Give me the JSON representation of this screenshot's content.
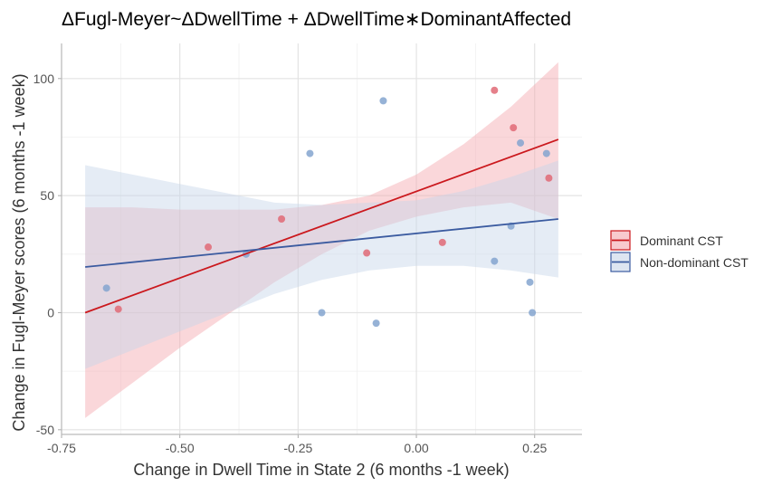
{
  "chart_data": {
    "type": "scatter",
    "title": "ΔFugl-Meyer~ΔDwellTime + ΔDwellTime∗DominantAffected",
    "xlabel": "Change in Dwell Time in State 2 (6 months -1 week)",
    "ylabel": "Change in Fugl-Meyer scores (6 months -1 week)",
    "xlim": [
      -0.75,
      0.35
    ],
    "ylim": [
      -52,
      115
    ],
    "x_ticks": [
      -0.75,
      -0.5,
      -0.25,
      0.0,
      0.25
    ],
    "x_tick_labels": [
      "-0.75",
      "-0.50",
      "-0.25",
      "0.00",
      "0.25"
    ],
    "y_ticks": [
      -50,
      0,
      50,
      100
    ],
    "y_tick_labels": [
      "-50",
      "0",
      "50",
      "100"
    ],
    "grid": true,
    "legend_position": "right",
    "series": [
      {
        "name": "Dominant CST",
        "color": "#cb181d",
        "fill_color": "#f4a6ad",
        "point_color": "#e06a75",
        "points": [
          {
            "x": -0.63,
            "y": 1.5
          },
          {
            "x": -0.44,
            "y": 28
          },
          {
            "x": -0.285,
            "y": 40
          },
          {
            "x": -0.105,
            "y": 25.5
          },
          {
            "x": 0.055,
            "y": 30
          },
          {
            "x": 0.165,
            "y": 95
          },
          {
            "x": 0.205,
            "y": 79
          },
          {
            "x": 0.28,
            "y": 57.5
          }
        ],
        "fit": {
          "x": [
            -0.7,
            0.3
          ],
          "y": [
            0,
            74
          ]
        },
        "band": {
          "x": [
            -0.7,
            -0.6,
            -0.5,
            -0.4,
            -0.3,
            -0.2,
            -0.1,
            0.0,
            0.1,
            0.2,
            0.3
          ],
          "lower": [
            -45,
            -30,
            -15,
            -1,
            13,
            25,
            35,
            41,
            45,
            47,
            40
          ],
          "upper": [
            45,
            45,
            44,
            44,
            44,
            46,
            50,
            59,
            72,
            88,
            107
          ]
        }
      },
      {
        "name": "Non-dominant CST",
        "color": "#3b5ba0",
        "fill_color": "#c6d4e8",
        "point_color": "#84a5cf",
        "points": [
          {
            "x": -0.655,
            "y": 10.5
          },
          {
            "x": -0.36,
            "y": 25
          },
          {
            "x": -0.225,
            "y": 68
          },
          {
            "x": -0.2,
            "y": 0
          },
          {
            "x": -0.085,
            "y": -4.5
          },
          {
            "x": -0.07,
            "y": 90.5
          },
          {
            "x": 0.165,
            "y": 22
          },
          {
            "x": 0.2,
            "y": 37
          },
          {
            "x": 0.22,
            "y": 72.5
          },
          {
            "x": 0.24,
            "y": 13
          },
          {
            "x": 0.245,
            "y": 0
          },
          {
            "x": 0.275,
            "y": 68
          }
        ],
        "fit": {
          "x": [
            -0.7,
            0.3
          ],
          "y": [
            19.5,
            40
          ]
        },
        "band": {
          "x": [
            -0.7,
            -0.6,
            -0.5,
            -0.4,
            -0.3,
            -0.2,
            -0.1,
            0.0,
            0.1,
            0.2,
            0.3
          ],
          "lower": [
            -24,
            -16,
            -8,
            0,
            8,
            14,
            18,
            20,
            20,
            18,
            15
          ],
          "upper": [
            63,
            59,
            55,
            51,
            47,
            46,
            47,
            48,
            52,
            58,
            65
          ]
        }
      }
    ]
  }
}
